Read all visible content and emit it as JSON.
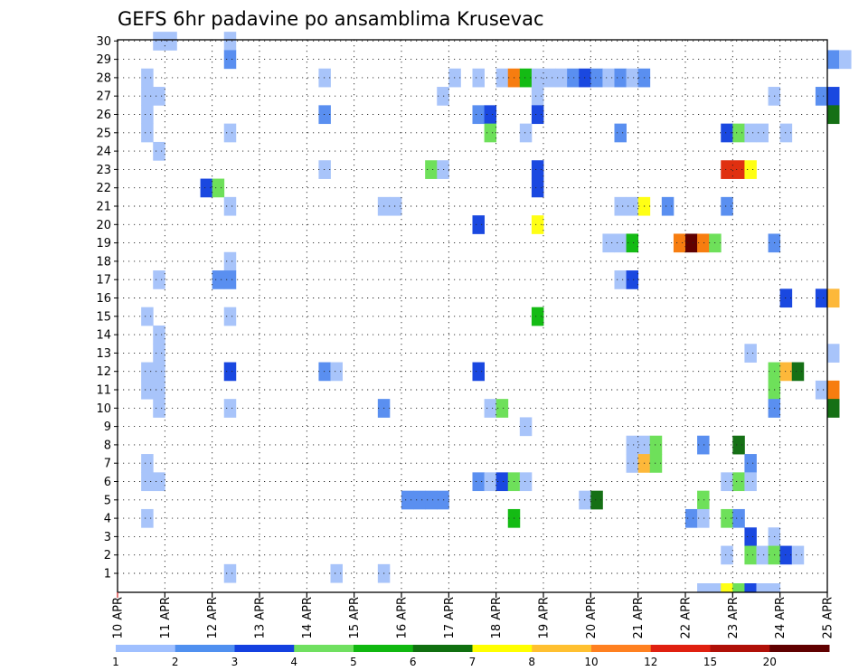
{
  "chart_data": {
    "type": "heatmap",
    "title": "GEFS 6hr padavine po ansamblima Krusevac",
    "x_ticks": [
      "10 APR",
      "11 APR",
      "12 APR",
      "13 APR",
      "14 APR",
      "15 APR",
      "16 APR",
      "17 APR",
      "18 APR",
      "19 APR",
      "20 APR",
      "21 APR",
      "22 APR",
      "23 APR",
      "24 APR",
      "25 APR"
    ],
    "steps_per_day": 4,
    "y_members": [
      1,
      2,
      3,
      4,
      5,
      6,
      7,
      8,
      9,
      10,
      11,
      12,
      13,
      14,
      15,
      16,
      17,
      18,
      19,
      20,
      21,
      22,
      23,
      24,
      25,
      26,
      27,
      28,
      29,
      30
    ],
    "grid": "dotted",
    "legend": {
      "position": "bottom",
      "labels": [
        "1",
        "2",
        "3",
        "4",
        "5",
        "6",
        "7",
        "8",
        "10",
        "12",
        "15",
        "20"
      ],
      "colors": [
        "#a0c0ff",
        "#5090f0",
        "#1440e0",
        "#70e060",
        "#10b810",
        "#107010",
        "#ffff00",
        "#ffc030",
        "#ff8020",
        "#e02010",
        "#b01008",
        "#600000"
      ]
    },
    "class_colors": {
      "1": "#a8c4fa",
      "2": "#5a8ff0",
      "3": "#1a48e0",
      "4": "#6ee05a",
      "5": "#14bb14",
      "6": "#157015",
      "7": "#ffff14",
      "8": "#fdb83a",
      "10": "#f77d10",
      "12": "#e03010",
      "15": "#c01808",
      "20": "#600000"
    },
    "cells": [
      [
        30,
        0.75,
        1,
        1
      ],
      [
        30,
        1,
        1,
        1
      ],
      [
        30,
        2.25,
        1,
        1
      ],
      [
        29,
        2.25,
        1,
        2
      ],
      [
        29,
        15.0,
        1,
        2
      ],
      [
        29,
        15.25,
        1,
        1
      ],
      [
        28,
        0.5,
        1,
        1
      ],
      [
        28,
        4.25,
        1,
        1
      ],
      [
        28,
        7.0,
        1,
        1
      ],
      [
        28,
        7.5,
        1,
        1
      ],
      [
        28,
        8.0,
        1,
        1
      ],
      [
        28,
        8.25,
        1,
        10
      ],
      [
        28,
        8.5,
        1,
        5
      ],
      [
        28,
        8.75,
        1,
        1
      ],
      [
        28,
        9.0,
        1,
        1
      ],
      [
        28,
        9.25,
        1,
        1
      ],
      [
        28,
        9.5,
        1,
        2
      ],
      [
        28,
        9.75,
        1,
        3
      ],
      [
        28,
        10.0,
        1,
        2
      ],
      [
        28,
        10.25,
        1,
        1
      ],
      [
        28,
        10.5,
        1,
        2
      ],
      [
        28,
        10.75,
        1,
        1
      ],
      [
        28,
        11.0,
        1,
        2
      ],
      [
        27,
        0.5,
        1,
        1
      ],
      [
        27,
        0.75,
        1,
        1
      ],
      [
        27,
        6.75,
        1,
        1
      ],
      [
        27,
        8.75,
        1,
        1
      ],
      [
        27,
        13.75,
        1,
        1
      ],
      [
        27,
        14.75,
        1,
        2
      ],
      [
        27,
        15.0,
        1,
        3
      ],
      [
        26,
        0.5,
        1,
        1
      ],
      [
        26,
        4.25,
        1,
        2
      ],
      [
        26,
        7.5,
        1,
        2
      ],
      [
        26,
        7.75,
        1,
        3
      ],
      [
        26,
        8.75,
        1,
        3
      ],
      [
        26,
        15.0,
        1,
        6
      ],
      [
        25,
        0.5,
        1,
        1
      ],
      [
        25,
        2.25,
        1,
        1
      ],
      [
        25,
        7.75,
        1,
        4
      ],
      [
        25,
        8.5,
        1,
        1
      ],
      [
        25,
        10.5,
        1,
        2
      ],
      [
        25,
        12.75,
        1,
        3
      ],
      [
        25,
        13.0,
        1,
        4
      ],
      [
        25,
        13.25,
        1,
        1
      ],
      [
        25,
        13.5,
        1,
        1
      ],
      [
        25,
        14.0,
        1,
        1
      ],
      [
        24,
        0.75,
        1,
        1
      ],
      [
        23,
        4.25,
        1,
        1
      ],
      [
        23,
        6.5,
        1,
        4
      ],
      [
        23,
        6.75,
        1,
        1
      ],
      [
        23,
        8.75,
        1,
        3
      ],
      [
        23,
        12.75,
        1,
        12
      ],
      [
        23,
        13.0,
        1,
        12
      ],
      [
        23,
        13.25,
        1,
        7
      ],
      [
        22,
        1.75,
        1,
        3
      ],
      [
        22,
        2.0,
        1,
        4
      ],
      [
        22,
        8.75,
        1,
        3
      ],
      [
        21,
        2.25,
        1,
        1
      ],
      [
        21,
        5.5,
        1,
        1
      ],
      [
        21,
        5.75,
        1,
        1
      ],
      [
        21,
        10.5,
        1,
        1
      ],
      [
        21,
        10.75,
        1,
        1
      ],
      [
        21,
        11.0,
        1,
        7
      ],
      [
        21,
        11.5,
        1,
        2
      ],
      [
        21,
        12.75,
        1,
        2
      ],
      [
        20,
        7.5,
        1,
        3
      ],
      [
        20,
        8.75,
        1,
        7
      ],
      [
        19,
        10.25,
        1,
        1
      ],
      [
        19,
        10.5,
        1,
        1
      ],
      [
        19,
        10.75,
        1,
        5
      ],
      [
        19,
        11.75,
        1,
        10
      ],
      [
        19,
        12.0,
        1,
        20
      ],
      [
        19,
        12.25,
        1,
        10
      ],
      [
        19,
        12.5,
        1,
        4
      ],
      [
        19,
        13.75,
        1,
        2
      ],
      [
        18,
        2.25,
        1,
        1
      ],
      [
        17,
        0.75,
        1,
        1
      ],
      [
        17,
        2.0,
        1,
        2
      ],
      [
        17,
        2.25,
        1,
        2
      ],
      [
        17,
        10.5,
        1,
        1
      ],
      [
        17,
        10.75,
        1,
        3
      ],
      [
        16,
        14.0,
        1,
        3
      ],
      [
        16,
        14.75,
        1,
        3
      ],
      [
        16,
        15.0,
        1,
        8
      ],
      [
        15,
        0.5,
        1,
        1
      ],
      [
        15,
        2.25,
        1,
        1
      ],
      [
        15,
        8.75,
        1,
        5
      ],
      [
        14,
        0.75,
        1,
        1
      ],
      [
        13,
        0.75,
        1,
        1
      ],
      [
        13,
        13.25,
        1,
        1
      ],
      [
        13,
        15.0,
        1,
        1
      ],
      [
        12,
        0.5,
        1,
        1
      ],
      [
        12,
        0.75,
        1,
        1
      ],
      [
        12,
        2.25,
        1,
        3
      ],
      [
        12,
        4.25,
        1,
        2
      ],
      [
        12,
        4.5,
        1,
        1
      ],
      [
        12,
        7.5,
        1,
        3
      ],
      [
        12,
        13.75,
        1,
        4
      ],
      [
        12,
        14.0,
        1,
        8
      ],
      [
        12,
        14.25,
        1,
        6
      ],
      [
        11,
        0.5,
        1,
        1
      ],
      [
        11,
        0.75,
        1,
        1
      ],
      [
        11,
        13.75,
        1,
        4
      ],
      [
        11,
        14.75,
        1,
        1
      ],
      [
        11,
        15.0,
        1,
        10
      ],
      [
        10,
        0.75,
        1,
        1
      ],
      [
        10,
        2.25,
        1,
        1
      ],
      [
        10,
        5.5,
        1,
        2
      ],
      [
        10,
        7.75,
        1,
        1
      ],
      [
        10,
        8.0,
        1,
        4
      ],
      [
        10,
        13.75,
        1,
        2
      ],
      [
        10,
        15.0,
        1,
        6
      ],
      [
        9,
        8.5,
        1,
        1
      ],
      [
        8,
        10.75,
        1,
        1
      ],
      [
        8,
        11.0,
        1,
        1
      ],
      [
        8,
        11.25,
        1,
        4
      ],
      [
        8,
        12.25,
        1,
        2
      ],
      [
        8,
        13.0,
        1,
        6
      ],
      [
        7,
        0.5,
        1,
        1
      ],
      [
        7,
        10.75,
        1,
        1
      ],
      [
        7,
        11.0,
        1,
        8
      ],
      [
        7,
        11.25,
        1,
        4
      ],
      [
        7,
        13.25,
        1,
        2
      ],
      [
        6,
        0.5,
        1,
        1
      ],
      [
        6,
        0.75,
        1,
        1
      ],
      [
        6,
        7.5,
        1,
        2
      ],
      [
        6,
        7.75,
        1,
        1
      ],
      [
        6,
        8.0,
        1,
        3
      ],
      [
        6,
        8.25,
        1,
        4
      ],
      [
        6,
        8.5,
        1,
        1
      ],
      [
        6,
        12.75,
        1,
        1
      ],
      [
        6,
        13.0,
        1,
        4
      ],
      [
        6,
        13.25,
        1,
        1
      ],
      [
        5,
        6.0,
        1,
        2
      ],
      [
        5,
        6.25,
        1,
        2
      ],
      [
        5,
        6.5,
        1,
        2
      ],
      [
        5,
        6.75,
        1,
        2
      ],
      [
        5,
        9.75,
        1,
        1
      ],
      [
        5,
        10.0,
        1,
        6
      ],
      [
        5,
        12.25,
        1,
        4
      ],
      [
        4,
        0.5,
        1,
        1
      ],
      [
        4,
        8.25,
        1,
        5
      ],
      [
        4,
        12.0,
        1,
        2
      ],
      [
        4,
        12.25,
        1,
        1
      ],
      [
        4,
        12.75,
        1,
        4
      ],
      [
        4,
        13.0,
        1,
        2
      ],
      [
        3,
        13.25,
        1,
        3
      ],
      [
        3,
        13.75,
        1,
        1
      ],
      [
        2,
        12.75,
        1,
        1
      ],
      [
        2,
        13.25,
        1,
        4
      ],
      [
        2,
        13.5,
        1,
        1
      ],
      [
        2,
        13.75,
        1,
        4
      ],
      [
        2,
        14.0,
        1,
        3
      ],
      [
        2,
        14.25,
        1,
        1
      ],
      [
        1,
        2.25,
        1,
        1
      ],
      [
        1,
        4.5,
        1,
        1
      ],
      [
        1,
        5.5,
        1,
        1
      ]
    ],
    "bottom_strip": [
      [
        12.25,
        1
      ],
      [
        12.5,
        1
      ],
      [
        12.75,
        7
      ],
      [
        13.0,
        4
      ],
      [
        13.25,
        3
      ],
      [
        13.5,
        1
      ],
      [
        13.75,
        1
      ]
    ]
  }
}
